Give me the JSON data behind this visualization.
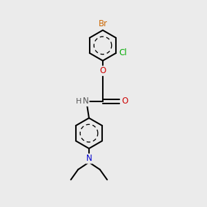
{
  "bg_color": "#ebebeb",
  "bond_color": "#000000",
  "bond_width": 1.5,
  "atom_colors": {
    "Br": "#cc6600",
    "Cl": "#00aa00",
    "O": "#cc0000",
    "N_amide": "#555555",
    "N_amine": "#0000cc",
    "H": "#555555",
    "C": "#000000"
  },
  "font_size": 8.5,
  "fig_size": [
    3.0,
    3.0
  ],
  "dpi": 100,
  "xlim": [
    -1.0,
    1.8
  ],
  "ylim": [
    -2.8,
    2.8
  ]
}
